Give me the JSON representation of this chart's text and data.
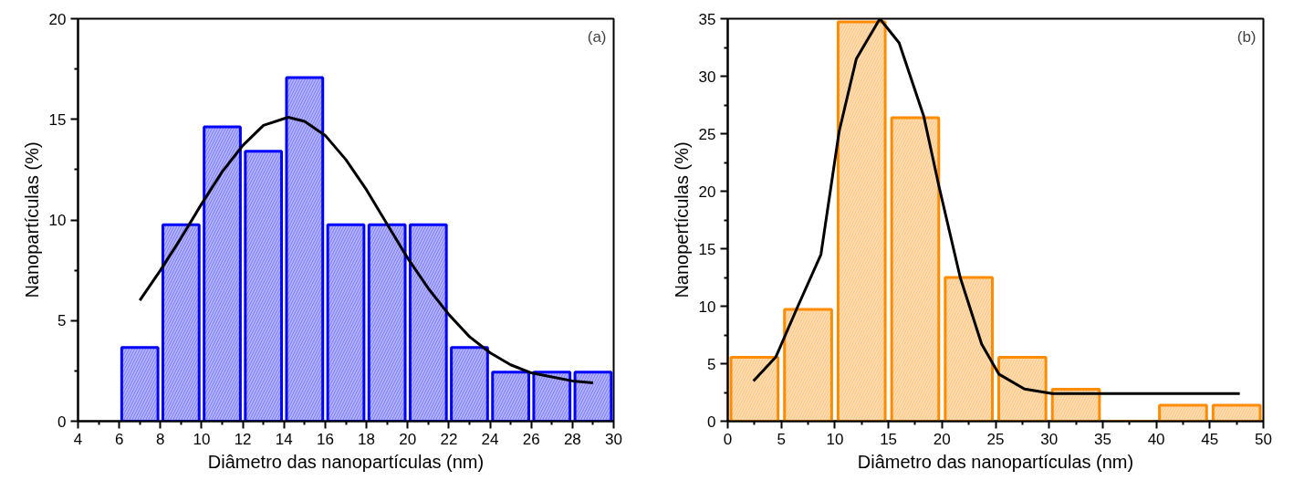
{
  "chart_data": [
    {
      "type": "histogram",
      "xlabel": "Diâmetro das nanopartículas (nm)",
      "ylabel": "Nanopartículas (%)",
      "annotations": [
        "(a)"
      ],
      "bins": [
        6,
        8,
        10,
        12,
        14,
        16,
        18,
        20,
        22,
        24,
        26,
        28,
        30
      ],
      "xlim": [
        4,
        30
      ],
      "xticks": [
        4,
        6,
        8,
        10,
        12,
        14,
        16,
        18,
        20,
        22,
        24,
        26,
        28,
        30
      ],
      "ylim": [
        0,
        20
      ],
      "yticks": [
        0,
        5,
        10,
        15,
        20
      ],
      "grid": false,
      "series": [
        {
          "color": "#0000ff",
          "values": [
            3.66,
            9.76,
            14.63,
            13.41,
            17.07,
            9.76,
            9.76,
            9.76,
            3.66,
            2.44,
            2.44,
            2.44
          ]
        },
        {
          "type": "line",
          "color": "#000000",
          "x": [
            7,
            8,
            9,
            10,
            11,
            12,
            13,
            14.2,
            15,
            16,
            17,
            18,
            19,
            20,
            21,
            22,
            23,
            24,
            25,
            26,
            27,
            28,
            29
          ],
          "values": [
            6.0,
            7.5,
            9.1,
            10.8,
            12.4,
            13.7,
            14.7,
            15.1,
            14.9,
            14.2,
            13.0,
            11.5,
            9.8,
            8.1,
            6.6,
            5.3,
            4.2,
            3.4,
            2.8,
            2.4,
            2.2,
            2.0,
            1.9
          ]
        }
      ]
    },
    {
      "type": "histogram",
      "xlabel": "Diâmetro das nanopartículas (nm)",
      "ylabel": "Nanopertículas (%)",
      "annotations": [
        "(b)"
      ],
      "bins": [
        0,
        5,
        10,
        15,
        20,
        25,
        30,
        35,
        40,
        45,
        50
      ],
      "xlim": [
        0,
        50
      ],
      "xticks": [
        0,
        5,
        10,
        15,
        20,
        25,
        30,
        35,
        40,
        45,
        50
      ],
      "ylim": [
        0,
        35
      ],
      "yticks": [
        0,
        5,
        10,
        15,
        20,
        25,
        30,
        35
      ],
      "grid": false,
      "series": [
        {
          "color": "#ff8c00",
          "values": [
            5.56,
            9.72,
            34.72,
            26.39,
            12.5,
            5.56,
            2.78,
            0,
            1.39,
            1.39
          ]
        },
        {
          "type": "line",
          "color": "#000000",
          "x": [
            2.4,
            4.5,
            6.5,
            8.7,
            10.4,
            12.0,
            14.2,
            16.0,
            18.3,
            19.7,
            21.7,
            23.7,
            25.3,
            27.7,
            30.3,
            47.8
          ],
          "values": [
            3.5,
            5.6,
            9.9,
            14.5,
            25.2,
            31.5,
            35.0,
            32.9,
            26.5,
            20.5,
            12.5,
            6.7,
            4.1,
            2.8,
            2.4,
            2.4
          ]
        }
      ]
    }
  ]
}
